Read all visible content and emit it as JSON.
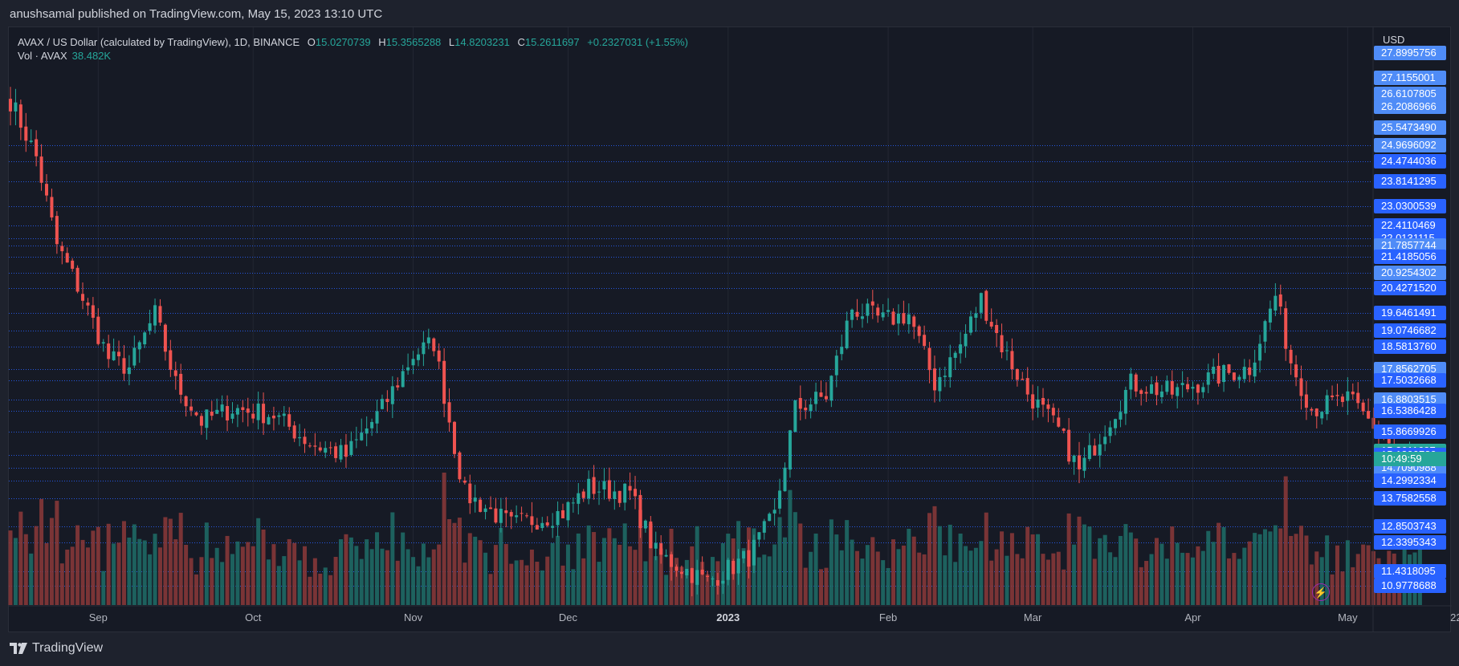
{
  "header": {
    "text": "anushsamal published on TradingView.com, May 15, 2023 13:10 UTC"
  },
  "legend": {
    "symbol": "AVAX / US Dollar (calculated by TradingView), 1D, BINANCE",
    "o_label": "O",
    "o": "15.0270739",
    "h_label": "H",
    "h": "15.3565288",
    "l_label": "L",
    "l": "14.8203231",
    "c_label": "C",
    "c": "15.2611697",
    "change": "+0.2327031 (+1.55%)"
  },
  "volume_legend": {
    "label": "Vol · AVAX",
    "value": "38.482K"
  },
  "price_axis": {
    "currency": "USD",
    "countdown": "10:49:59",
    "labels": [
      {
        "text": "27.8995756",
        "color": "#4f8cf7"
      },
      {
        "text": "27.1155001",
        "color": "#4f8cf7"
      },
      {
        "text": "26.6107805",
        "color": "#4f8cf7"
      },
      {
        "text": "26.2086966",
        "color": "#4f8cf7"
      },
      {
        "text": "25.5473490",
        "color": "#4f8cf7"
      },
      {
        "text": "24.9696092",
        "color": "#4f8cf7"
      },
      {
        "text": "24.4744036",
        "color": "#2962ff"
      },
      {
        "text": "23.8141295",
        "color": "#2962ff"
      },
      {
        "text": "23.0300539",
        "color": "#2962ff"
      },
      {
        "text": "22.4110469",
        "color": "#2962ff"
      },
      {
        "text": "22.0131115",
        "color": "#2962ff"
      },
      {
        "text": "21.7857744",
        "color": "#4f8cf7"
      },
      {
        "text": "21.4185056",
        "color": "#2962ff"
      },
      {
        "text": "20.9254302",
        "color": "#4f8cf7"
      },
      {
        "text": "20.4271520",
        "color": "#2962ff"
      },
      {
        "text": "19.6461491",
        "color": "#2962ff"
      },
      {
        "text": "19.0746682",
        "color": "#2962ff"
      },
      {
        "text": "18.5813760",
        "color": "#2962ff"
      },
      {
        "text": "17.8562705",
        "color": "#4f8cf7"
      },
      {
        "text": "17.5032668",
        "color": "#2962ff"
      },
      {
        "text": "16.8803515",
        "color": "#4f8cf7"
      },
      {
        "text": "16.5386428",
        "color": "#2962ff"
      },
      {
        "text": "15.8669926",
        "color": "#2962ff"
      },
      {
        "text": "15.2611697",
        "color": "#26a69a"
      },
      {
        "text": "15.1200780",
        "color": "#2962ff"
      },
      {
        "text": "14.7090988",
        "color": "#4f8cf7"
      },
      {
        "text": "14.2992334",
        "color": "#2962ff"
      },
      {
        "text": "13.7582558",
        "color": "#2962ff"
      },
      {
        "text": "12.8503743",
        "color": "#2962ff"
      },
      {
        "text": "12.3395343",
        "color": "#2962ff"
      },
      {
        "text": "11.4318095",
        "color": "#2962ff"
      },
      {
        "text": "10.9778688",
        "color": "#2962ff"
      }
    ]
  },
  "time_axis": {
    "labels": [
      {
        "text": "Sep",
        "bold": false
      },
      {
        "text": "Oct",
        "bold": false
      },
      {
        "text": "Nov",
        "bold": false
      },
      {
        "text": "Dec",
        "bold": false
      },
      {
        "text": "2023",
        "bold": true
      },
      {
        "text": "Feb",
        "bold": false
      },
      {
        "text": "Mar",
        "bold": false
      },
      {
        "text": "Apr",
        "bold": false
      },
      {
        "text": "May",
        "bold": false
      },
      {
        "text": "22",
        "bold": false
      }
    ]
  },
  "footer": {
    "brand": "TradingView"
  },
  "colors": {
    "up": "#26a69a",
    "down": "#ef5350",
    "level_line": "#2962ff",
    "background": "#161a25"
  },
  "chart_data": {
    "type": "candlestick",
    "symbol": "AVAX / US Dollar",
    "interval": "1D",
    "exchange": "BINANCE",
    "date_range": [
      "2022-08-15",
      "2023-05-15"
    ],
    "x_ticks": [
      "Sep",
      "Oct",
      "Nov",
      "Dec",
      "2023",
      "Feb",
      "Mar",
      "Apr",
      "May",
      "22"
    ],
    "anchor_closes": [
      {
        "date": "2022-08-15",
        "close": 26.4
      },
      {
        "date": "2022-08-20",
        "close": 24.6
      },
      {
        "date": "2022-08-24",
        "close": 21.8
      },
      {
        "date": "2022-08-28",
        "close": 20.5
      },
      {
        "date": "2022-09-03",
        "close": 18.2
      },
      {
        "date": "2022-09-07",
        "close": 17.9
      },
      {
        "date": "2022-09-12",
        "close": 19.6
      },
      {
        "date": "2022-09-16",
        "close": 17.4
      },
      {
        "date": "2022-09-21",
        "close": 16.2
      },
      {
        "date": "2022-09-27",
        "close": 16.6
      },
      {
        "date": "2022-10-05",
        "close": 16.4
      },
      {
        "date": "2022-10-12",
        "close": 15.5
      },
      {
        "date": "2022-10-19",
        "close": 15.1
      },
      {
        "date": "2022-10-26",
        "close": 16.6
      },
      {
        "date": "2022-11-01",
        "close": 18.3
      },
      {
        "date": "2022-11-05",
        "close": 18.7
      },
      {
        "date": "2022-11-09",
        "close": 15.4
      },
      {
        "date": "2022-11-11",
        "close": 13.9
      },
      {
        "date": "2022-11-20",
        "close": 12.9
      },
      {
        "date": "2022-11-30",
        "close": 13.3
      },
      {
        "date": "2022-12-05",
        "close": 14.1
      },
      {
        "date": "2022-12-13",
        "close": 13.9
      },
      {
        "date": "2022-12-18",
        "close": 12.0
      },
      {
        "date": "2022-12-28",
        "close": 11.1
      },
      {
        "date": "2023-01-05",
        "close": 11.9
      },
      {
        "date": "2023-01-10",
        "close": 13.2
      },
      {
        "date": "2023-01-14",
        "close": 16.6
      },
      {
        "date": "2023-01-20",
        "close": 17.0
      },
      {
        "date": "2023-01-25",
        "close": 19.8
      },
      {
        "date": "2023-01-31",
        "close": 19.4
      },
      {
        "date": "2023-02-05",
        "close": 19.6
      },
      {
        "date": "2023-02-10",
        "close": 17.4
      },
      {
        "date": "2023-02-15",
        "close": 18.6
      },
      {
        "date": "2023-02-19",
        "close": 20.1
      },
      {
        "date": "2023-02-23",
        "close": 18.6
      },
      {
        "date": "2023-02-28",
        "close": 17.1
      },
      {
        "date": "2023-03-06",
        "close": 15.9
      },
      {
        "date": "2023-03-10",
        "close": 14.6
      },
      {
        "date": "2023-03-15",
        "close": 16.0
      },
      {
        "date": "2023-03-20",
        "close": 17.4
      },
      {
        "date": "2023-03-28",
        "close": 17.1
      },
      {
        "date": "2023-04-05",
        "close": 17.6
      },
      {
        "date": "2023-04-12",
        "close": 17.9
      },
      {
        "date": "2023-04-17",
        "close": 20.2
      },
      {
        "date": "2023-04-20",
        "close": 18.1
      },
      {
        "date": "2023-04-24",
        "close": 16.6
      },
      {
        "date": "2023-05-01",
        "close": 16.9
      },
      {
        "date": "2023-05-07",
        "close": 15.9
      },
      {
        "date": "2023-05-11",
        "close": 15.1
      },
      {
        "date": "2023-05-15",
        "close": 15.2611697
      }
    ],
    "last_candle": {
      "open": 15.0270739,
      "high": 15.3565288,
      "low": 14.8203231,
      "close": 15.2611697
    },
    "volume_last": "38.482K",
    "horizontal_levels": [
      24.9696092,
      24.4744036,
      23.8141295,
      23.0300539,
      22.4110469,
      22.0131115,
      21.7857744,
      21.4185056,
      20.9254302,
      20.427152,
      19.6461491,
      19.0746682,
      18.581376,
      17.8562705,
      17.5032668,
      16.8803515,
      16.5386428,
      15.8669926,
      15.120078,
      14.7090988,
      14.2992334,
      13.7582558,
      12.8503743,
      12.3395343,
      11.4318095,
      10.9778688
    ]
  }
}
